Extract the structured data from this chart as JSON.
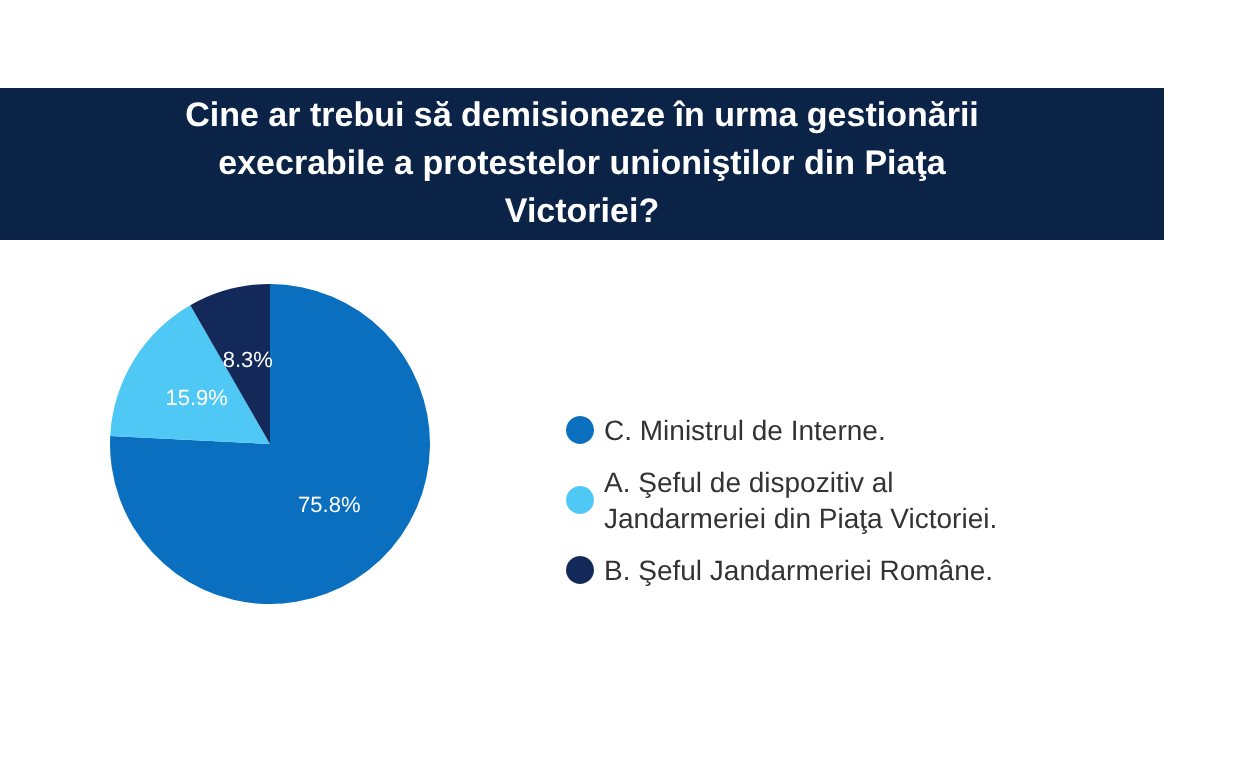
{
  "chart_data": {
    "type": "pie",
    "title": "Cine ar trebui să demisioneze în urma gestionării execrabile a protestelor unioniştilor din Piaţa Victoriei?",
    "categories": [
      "C. Ministrul de Interne.",
      "A. Şeful de dispozitiv al Jandarmeriei din Piaţa Victoriei.",
      "B. Şeful Jandarmeriei Române."
    ],
    "values": [
      75.8,
      15.9,
      8.3
    ],
    "colors": [
      "#0b6fbf",
      "#4fc8f5",
      "#13295a"
    ],
    "value_labels": [
      "75.8%",
      "15.9%",
      "8.3%"
    ],
    "legend": "right"
  }
}
